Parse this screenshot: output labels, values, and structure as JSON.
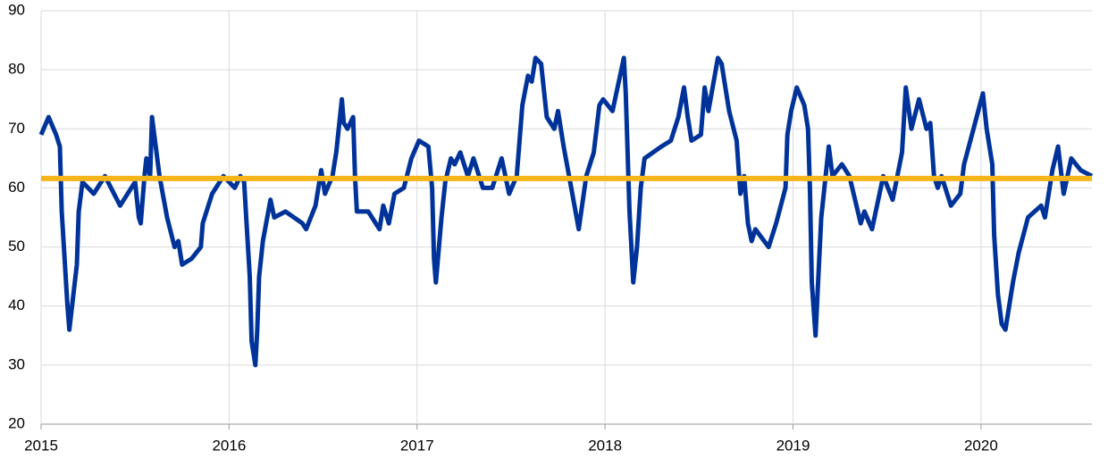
{
  "chart_data": {
    "type": "line",
    "x": [
      2015.0,
      2015.04,
      2015.08,
      2015.1,
      2015.11,
      2015.14,
      2015.15,
      2015.19,
      2015.2,
      2015.22,
      2015.28,
      2015.34,
      2015.42,
      2015.48,
      2015.5,
      2015.52,
      2015.53,
      2015.55,
      2015.56,
      2015.58,
      2015.59,
      2015.61,
      2015.63,
      2015.67,
      2015.71,
      2015.73,
      2015.75,
      2015.8,
      2015.85,
      2015.86,
      2015.91,
      2015.97,
      2016.03,
      2016.06,
      2016.08,
      2016.11,
      2016.12,
      2016.14,
      2016.15,
      2016.16,
      2016.18,
      2016.22,
      2016.24,
      2016.3,
      2016.39,
      2016.41,
      2016.46,
      2016.49,
      2016.51,
      2016.55,
      2016.57,
      2016.6,
      2016.61,
      2016.63,
      2016.66,
      2016.67,
      2016.68,
      2016.74,
      2016.8,
      2016.82,
      2016.85,
      2016.88,
      2016.93,
      2016.97,
      2017.01,
      2017.06,
      2017.08,
      2017.09,
      2017.1,
      2017.13,
      2017.15,
      2017.18,
      2017.2,
      2017.23,
      2017.27,
      2017.3,
      2017.35,
      2017.4,
      2017.45,
      2017.49,
      2017.53,
      2017.56,
      2017.59,
      2017.61,
      2017.63,
      2017.66,
      2017.69,
      2017.73,
      2017.75,
      2017.78,
      2017.82,
      2017.86,
      2017.9,
      2017.94,
      2017.97,
      2017.99,
      2018.04,
      2018.06,
      2018.1,
      2018.11,
      2018.13,
      2018.15,
      2018.17,
      2018.19,
      2018.21,
      2018.3,
      2018.35,
      2018.39,
      2018.42,
      2018.44,
      2018.46,
      2018.51,
      2018.53,
      2018.55,
      2018.6,
      2018.62,
      2018.66,
      2018.7,
      2018.72,
      2018.74,
      2018.76,
      2018.78,
      2018.8,
      2018.87,
      2018.91,
      2018.96,
      2018.97,
      2018.99,
      2019.02,
      2019.06,
      2019.08,
      2019.09,
      2019.1,
      2019.12,
      2019.13,
      2019.15,
      2019.19,
      2019.21,
      2019.26,
      2019.3,
      2019.36,
      2019.38,
      2019.42,
      2019.48,
      2019.53,
      2019.58,
      2019.6,
      2019.63,
      2019.67,
      2019.71,
      2019.73,
      2019.75,
      2019.77,
      2019.79,
      2019.84,
      2019.89,
      2019.91,
      2019.96,
      2020.01,
      2020.03,
      2020.06,
      2020.07,
      2020.09,
      2020.11,
      2020.13,
      2020.17,
      2020.2,
      2020.25,
      2020.32,
      2020.34,
      2020.38,
      2020.41,
      2020.44,
      2020.48,
      2020.53,
      2020.59
    ],
    "values": [
      69,
      72,
      69,
      67,
      56,
      40,
      36,
      47,
      56,
      61,
      59,
      62,
      57,
      60,
      61,
      55,
      54,
      62,
      65,
      62,
      72,
      67,
      62,
      55,
      50,
      51,
      47,
      48,
      50,
      54,
      59,
      62,
      60,
      62,
      61,
      45,
      34,
      30,
      36,
      45,
      51,
      58,
      55,
      56,
      54,
      53,
      57,
      63,
      59,
      62,
      66,
      75,
      71,
      70,
      72,
      62,
      56,
      56,
      53,
      57,
      54,
      59,
      60,
      65,
      68,
      67,
      60,
      48,
      44,
      55,
      61,
      65,
      64,
      66,
      62,
      65,
      60,
      60,
      65,
      59,
      62,
      74,
      79,
      78,
      82,
      81,
      72,
      70,
      73,
      67,
      60,
      53,
      62,
      66,
      74,
      75,
      73,
      76,
      82,
      76,
      56,
      44,
      50,
      60,
      65,
      67,
      68,
      72,
      77,
      72,
      68,
      69,
      77,
      73,
      82,
      81,
      73,
      68,
      59,
      62,
      54,
      51,
      53,
      50,
      54,
      60,
      69,
      73,
      77,
      74,
      70,
      60,
      44,
      35,
      42,
      55,
      67,
      62,
      64,
      62,
      54,
      56,
      53,
      62,
      58,
      66,
      77,
      70,
      75,
      70,
      71,
      62,
      60,
      62,
      57,
      59,
      64,
      70,
      76,
      70,
      64,
      52,
      42,
      37,
      36,
      44,
      49,
      55,
      57,
      55,
      63,
      67,
      59,
      65,
      63,
      62
    ],
    "color": "#003399",
    "reference_line": {
      "value": 61.6,
      "color": "#f5b417"
    },
    "xlim": [
      2015,
      2020.59
    ],
    "xticks": [
      2015,
      2016,
      2017,
      2018,
      2019,
      2020
    ],
    "ylim": [
      20,
      90
    ],
    "yticks": [
      20,
      30,
      40,
      50,
      60,
      70,
      80,
      90
    ],
    "grid": true
  }
}
